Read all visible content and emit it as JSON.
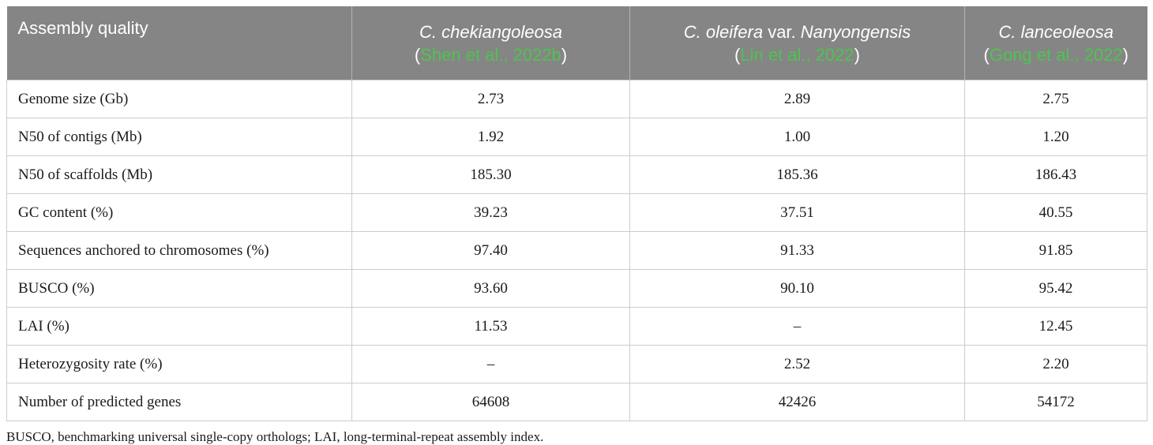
{
  "table": {
    "header": {
      "label": "Assembly quality",
      "species": [
        {
          "name_a": "C. chekiangoleosa",
          "name_b": "",
          "name_c": "",
          "cite_open": "(",
          "cite_text": "Shen et al., 2022b",
          "cite_close": ")"
        },
        {
          "name_a": "C. oleifera",
          "name_b": " var. ",
          "name_c": "Nanyongensis",
          "cite_open": "(",
          "cite_text": "Lin et al., 2022",
          "cite_close": ")"
        },
        {
          "name_a": "C. lanceoleosa",
          "name_b": "",
          "name_c": "",
          "cite_open": "(",
          "cite_text": "Gong et al., 2022",
          "cite_close": ")"
        }
      ]
    },
    "rows": [
      {
        "label": "Genome size (Gb)",
        "values": [
          "2.73",
          "2.89",
          "2.75"
        ]
      },
      {
        "label": "N50 of contigs (Mb)",
        "values": [
          "1.92",
          "1.00",
          "1.20"
        ]
      },
      {
        "label": "N50 of scaffolds (Mb)",
        "values": [
          "185.30",
          "185.36",
          "186.43"
        ]
      },
      {
        "label": "GC content (%)",
        "values": [
          "39.23",
          "37.51",
          "40.55"
        ]
      },
      {
        "label": "Sequences anchored to chromosomes (%)",
        "values": [
          "97.40",
          "91.33",
          "91.85"
        ]
      },
      {
        "label": "BUSCO (%)",
        "values": [
          "93.60",
          "90.10",
          "95.42"
        ]
      },
      {
        "label": "LAI (%)",
        "values": [
          "11.53",
          "–",
          "12.45"
        ]
      },
      {
        "label": "Heterozygosity rate (%)",
        "values": [
          "–",
          "2.52",
          "2.20"
        ]
      },
      {
        "label": "Number of predicted genes",
        "values": [
          "64608",
          "42426",
          "54172"
        ]
      }
    ],
    "footnote": "BUSCO, benchmarking universal single-copy orthologs; LAI, long-terminal-repeat assembly index."
  }
}
